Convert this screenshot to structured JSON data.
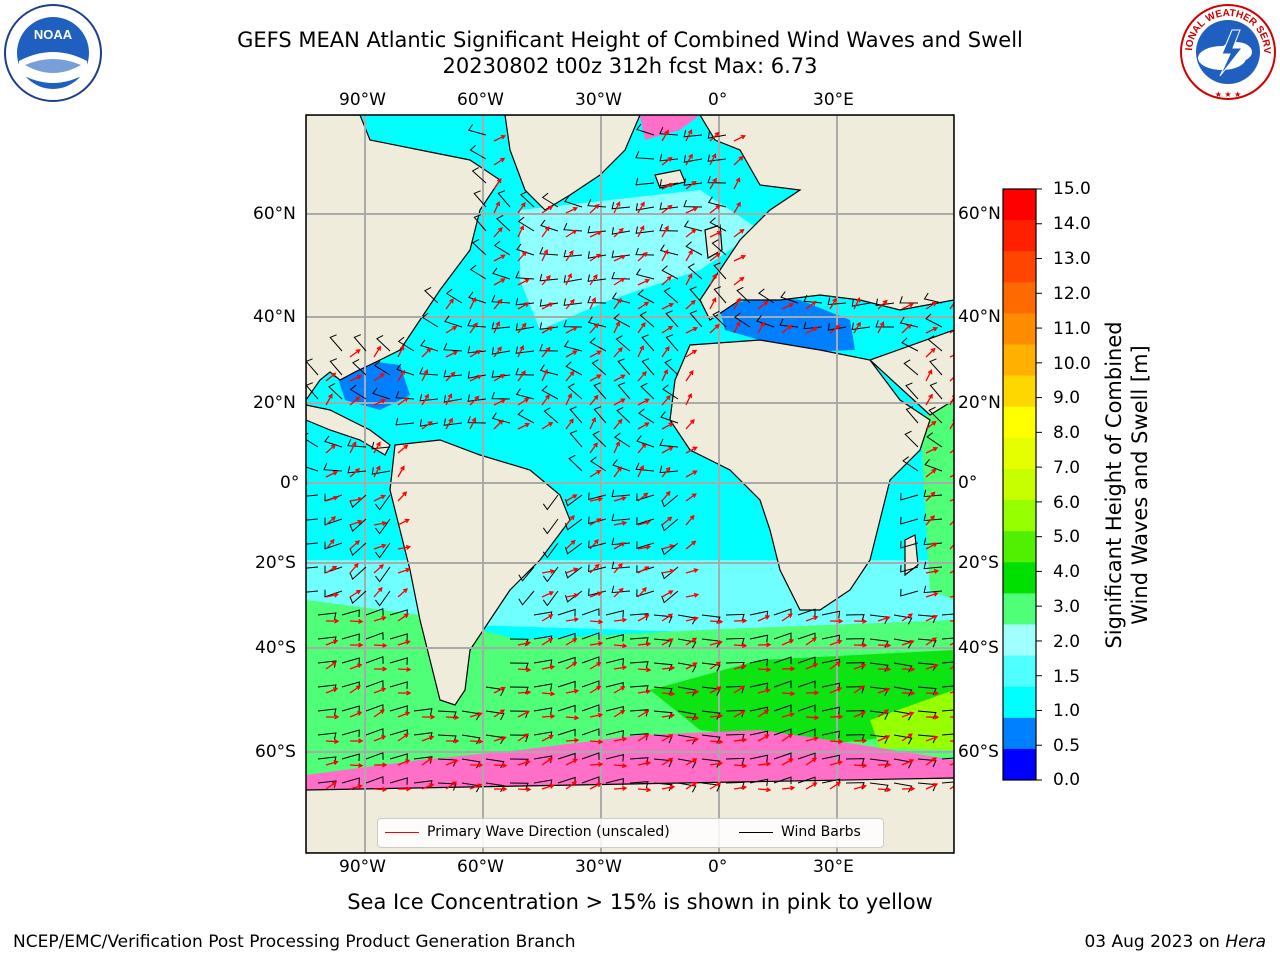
{
  "title": {
    "line1": "GEFS MEAN Atlantic Significant Height of Combined Wind Waves and Swell",
    "line2": "20230802 t00z 312h fcst    Max: 6.73"
  },
  "axes": {
    "lon_labels": [
      "90°W",
      "60°W",
      "30°W",
      "0°",
      "30°E"
    ],
    "lat_labels_left": [
      "60°N",
      "40°N",
      "20°N",
      "0°",
      "20°S",
      "40°S",
      "60°S"
    ],
    "lat_labels_right": [
      "60°N",
      "40°N",
      "20°N",
      "0°",
      "20°S",
      "40°S",
      "60°S"
    ]
  },
  "colorbar": {
    "label_line1": "Significant Height of Combined",
    "label_line2": "Wind Waves and Swell [m]",
    "ticks": [
      "15.0",
      "14.0",
      "13.0",
      "12.0",
      "11.0",
      "10.0",
      "9.0",
      "8.0",
      "7.0",
      "6.0",
      "5.0",
      "4.0",
      "3.0",
      "2.0",
      "1.5",
      "1.0",
      "0.5",
      "0.0"
    ],
    "colors": [
      "#ff0000",
      "#ff2000",
      "#ff4500",
      "#ff6a00",
      "#ff8c00",
      "#ffb000",
      "#ffd700",
      "#ffff00",
      "#e6ff00",
      "#c8ff00",
      "#96ff00",
      "#50f000",
      "#00e000",
      "#50ff78",
      "#a0ffff",
      "#50ffff",
      "#00ffff",
      "#0080ff",
      "#0000ff"
    ]
  },
  "legend": {
    "wave_dir_label": "Primary Wave Direction (unscaled)",
    "wind_barbs_label": "Wind Barbs",
    "wave_dir_color": "#ff0000",
    "wind_barbs_color": "#000000"
  },
  "subtitle": "Sea Ice Concentration > 15% is shown in pink to yellow",
  "footer": {
    "left": "NCEP/EMC/Verification Post Processing Product Generation Branch",
    "right_date": "03 Aug 2023 on ",
    "right_host": "Hera"
  },
  "logos": {
    "noaa_text": "NOAA",
    "nws_text": "NATIONAL WEATHER SERVICE"
  },
  "colors": {
    "land": "#efecdc",
    "ocean_calm": "#00ffff",
    "ocean_moderate": "#a0ffff",
    "ocean_high": "#50ff78",
    "ocean_higher": "#00e000",
    "ocean_low": "#0080ff",
    "sea_ice": "#ff6ec7"
  }
}
